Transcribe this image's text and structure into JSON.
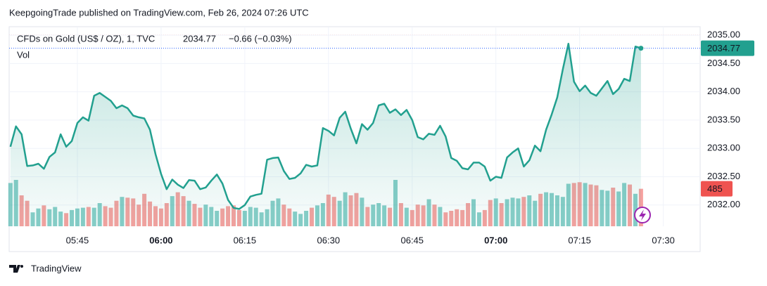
{
  "header": {
    "title": "KeepgoingTrade published on TradingView.com, Feb 26, 2024 07:26 UTC"
  },
  "footer": {
    "brand": "TradingView"
  },
  "chart_data": {
    "type": "area",
    "change_label": "−0.66 (−0.03%)",
    "categories": [
      null,
      null,
      null,
      null,
      null,
      null,
      null,
      null,
      null,
      null,
      null,
      null,
      "05:45",
      null,
      null,
      null,
      null,
      null,
      null,
      null,
      null,
      null,
      null,
      null,
      null,
      null,
      null,
      "06:00",
      null,
      null,
      null,
      null,
      null,
      null,
      null,
      null,
      null,
      null,
      null,
      null,
      null,
      null,
      "06:15",
      null,
      null,
      null,
      null,
      null,
      null,
      null,
      null,
      null,
      null,
      null,
      null,
      null,
      null,
      "06:30",
      null,
      null,
      null,
      null,
      null,
      null,
      null,
      null,
      null,
      null,
      null,
      null,
      null,
      null,
      "06:45",
      null,
      null,
      null,
      null,
      null,
      null,
      null,
      null,
      null,
      null,
      null,
      null,
      null,
      null,
      "07:00",
      null,
      null,
      null,
      null,
      null,
      null,
      null,
      null,
      null,
      null,
      null,
      null,
      null,
      null,
      "07:15",
      null,
      null,
      null,
      null,
      null,
      null,
      null,
      null,
      null,
      null,
      null,
      null,
      null,
      null,
      "07:30"
    ],
    "series": [
      {
        "name": "CFDs on Gold (US$ / OZ), 1, TVC",
        "color": "#22a08f",
        "values": [
          2033.03,
          2033.39,
          2033.25,
          2032.69,
          2032.7,
          2032.73,
          2032.64,
          2032.85,
          2032.93,
          2033.25,
          2033.03,
          2033.13,
          2033.45,
          2033.55,
          2033.49,
          2033.93,
          2033.98,
          2033.91,
          2033.84,
          2033.71,
          2033.76,
          2033.71,
          2033.58,
          2033.55,
          2033.53,
          2033.33,
          2032.9,
          2032.55,
          2032.28,
          2032.45,
          2032.36,
          2032.3,
          2032.44,
          2032.43,
          2032.28,
          2032.31,
          2032.43,
          2032.54,
          2032.38,
          2032.09,
          2031.95,
          2031.93,
          2032.0,
          2032.15,
          2032.18,
          2032.2,
          2032.8,
          2032.83,
          2032.84,
          2032.6,
          2032.46,
          2032.48,
          2032.56,
          2032.71,
          2032.68,
          2032.7,
          2033.36,
          2033.31,
          2033.23,
          2033.54,
          2033.65,
          2033.35,
          2033.09,
          2033.43,
          2033.33,
          2033.45,
          2033.76,
          2033.79,
          2033.63,
          2033.69,
          2033.59,
          2033.68,
          2033.5,
          2033.2,
          2033.16,
          2033.26,
          2033.24,
          2033.4,
          2033.21,
          2032.83,
          2032.78,
          2032.65,
          2032.63,
          2032.75,
          2032.75,
          2032.68,
          2032.43,
          2032.5,
          2032.48,
          2032.84,
          2032.93,
          2033.0,
          2032.68,
          2032.79,
          2033.05,
          2032.95,
          2033.33,
          2033.6,
          2033.9,
          2034.4,
          2034.85,
          2034.18,
          2034.01,
          2034.11,
          2033.98,
          2033.93,
          2034.06,
          2034.19,
          2033.96,
          2034.05,
          2034.23,
          2034.19,
          2034.8,
          2034.77,
          null,
          null,
          null,
          null
        ]
      },
      {
        "name": "Vol",
        "up_color": "#26a69a",
        "down_color": "#ef5350",
        "values": [
          560,
          600,
          400,
          330,
          180,
          230,
          270,
          220,
          250,
          190,
          170,
          210,
          230,
          240,
          250,
          240,
          300,
          260,
          240,
          330,
          380,
          370,
          360,
          280,
          420,
          320,
          260,
          230,
          300,
          390,
          440,
          390,
          330,
          290,
          240,
          280,
          250,
          200,
          230,
          260,
          270,
          210,
          200,
          250,
          240,
          180,
          220,
          330,
          360,
          280,
          230,
          190,
          160,
          200,
          240,
          270,
          300,
          410,
          380,
          330,
          440,
          400,
          430,
          370,
          250,
          280,
          300,
          270,
          240,
          600,
          300,
          240,
          210,
          280,
          270,
          350,
          280,
          250,
          180,
          200,
          220,
          210,
          300,
          350,
          180,
          210,
          340,
          360,
          300,
          350,
          370,
          360,
          380,
          400,
          330,
          420,
          440,
          430,
          400,
          380,
          550,
          560,
          570,
          560,
          540,
          530,
          470,
          460,
          500,
          450,
          560,
          540,
          420,
          485,
          null,
          null,
          null,
          null
        ]
      }
    ],
    "ylim": [
      2031.625,
      2035.15
    ],
    "yticks": [
      {
        "value": 2032,
        "label": "2032.00"
      },
      {
        "value": 2032.5,
        "label": "2032.50"
      },
      {
        "value": 2033,
        "label": "2033.00"
      },
      {
        "value": 2033.5,
        "label": "2033.50"
      },
      {
        "value": 2034,
        "label": "2034.00"
      },
      {
        "value": 2034.5,
        "label": "2034.50"
      },
      {
        "value": 2035,
        "label": "2035.00"
      }
    ],
    "grid": true
  }
}
